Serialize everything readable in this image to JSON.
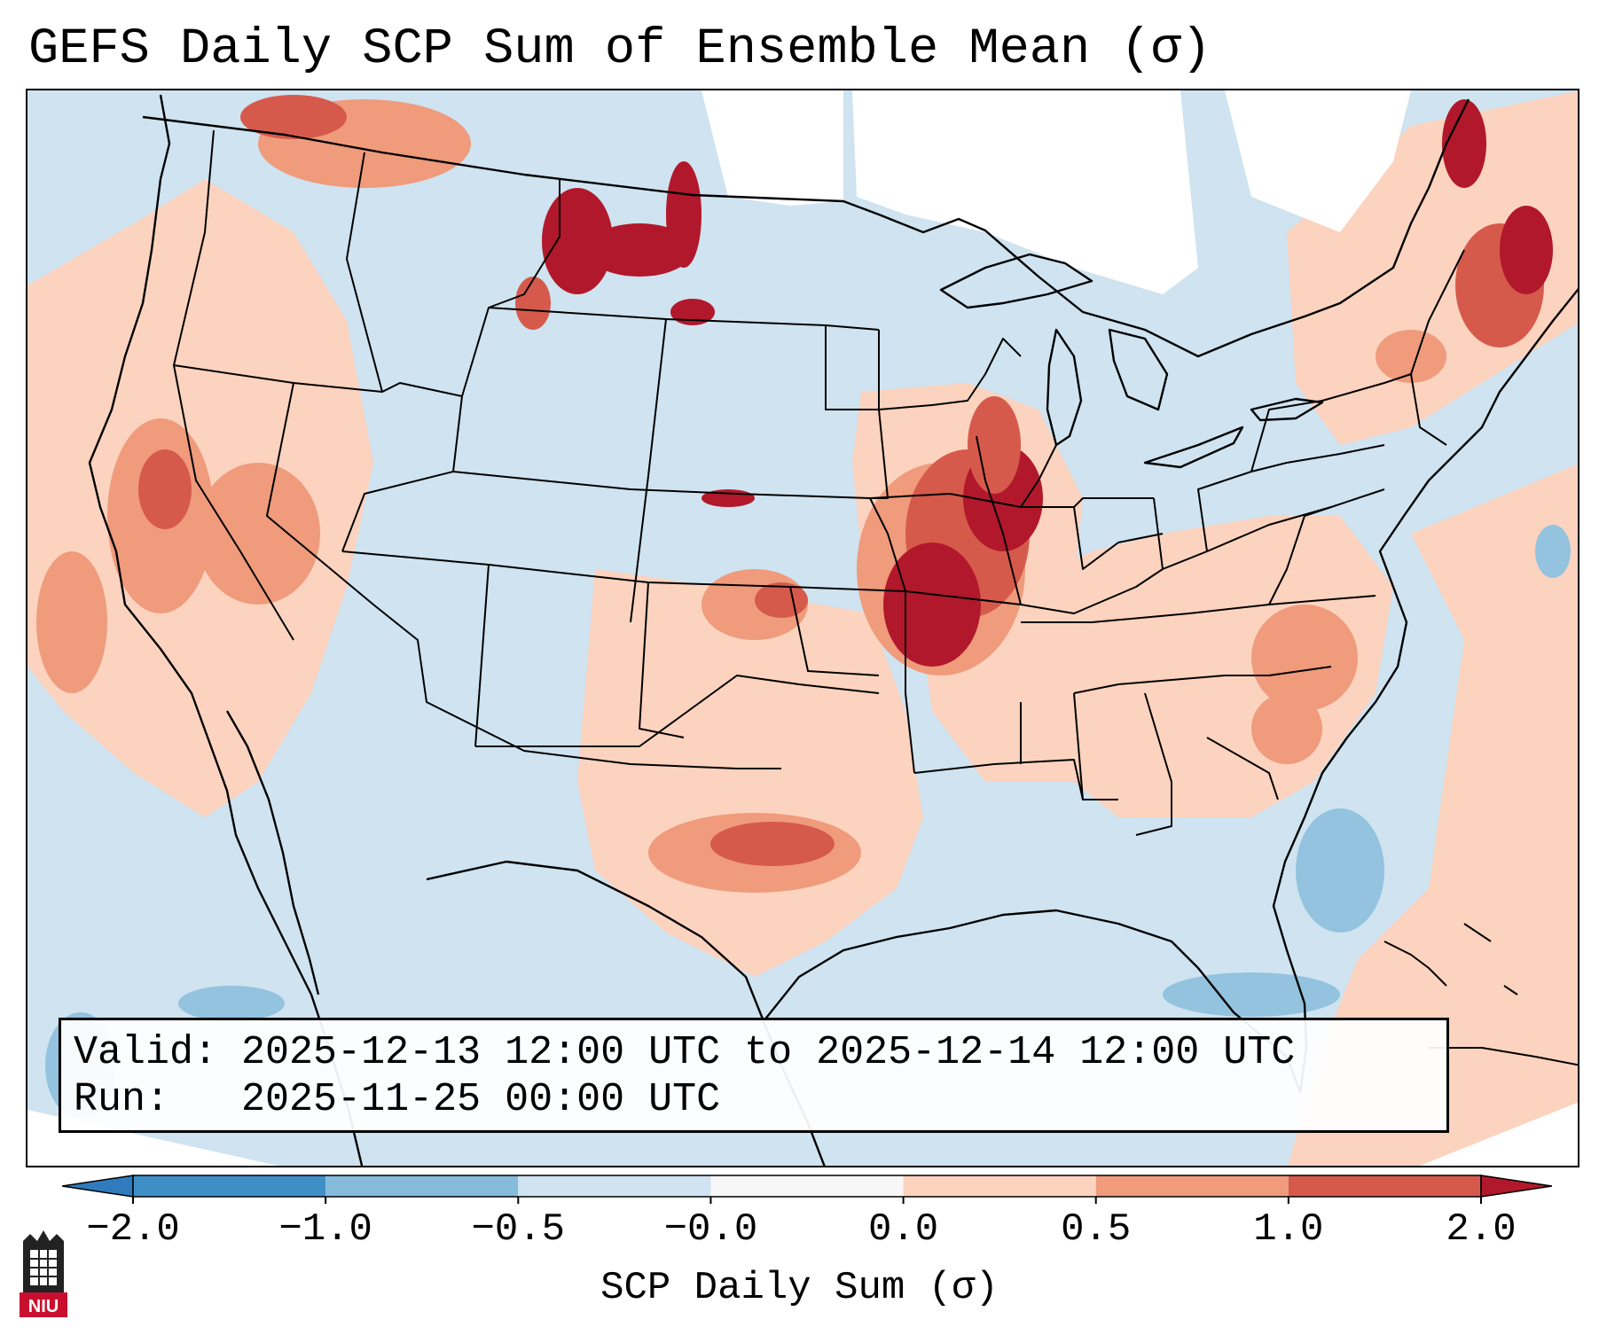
{
  "title": "GEFS Daily SCP Sum of Ensemble Mean (σ)",
  "info": {
    "valid_label": "Valid:",
    "valid_value": "2025-12-13 12:00 UTC to 2025-12-14 12:00 UTC",
    "run_label": "Run:",
    "run_value": "2025-11-25 00:00 UTC"
  },
  "colorbar": {
    "label": "SCP Daily Sum (σ)",
    "ticks": [
      "−2.0",
      "−1.0",
      "−0.5",
      "−0.0",
      "0.0",
      "0.5",
      "1.0",
      "2.0"
    ],
    "colors": [
      "#2f7bbd",
      "#86bbdc",
      "#cfe3f0",
      "#f7f7f7",
      "#fcd3bf",
      "#ef9b7c",
      "#d65a4c",
      "#b2182b"
    ],
    "extend": "both"
  },
  "logo": {
    "text": "NIU",
    "icon": "castle-icon"
  },
  "map": {
    "region": "Continental United States",
    "background_color": "#cfe3f0",
    "outline_color": "#000000"
  }
}
